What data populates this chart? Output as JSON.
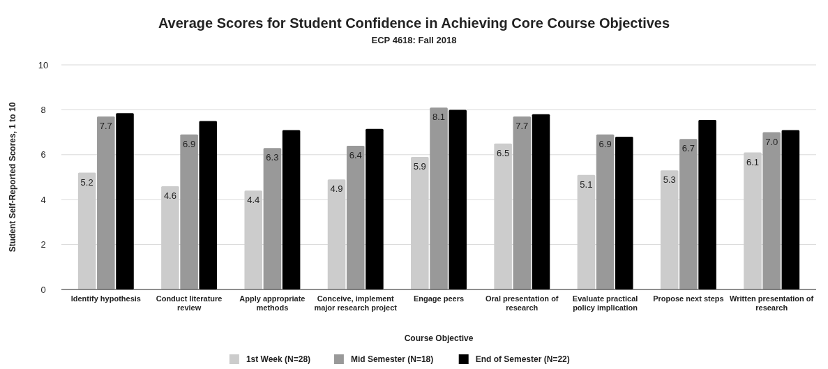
{
  "chart_data": {
    "type": "bar",
    "title": "Average Scores for Student Confidence in Achieving Core Course Objectives",
    "subtitle": "ECP 4618: Fall 2018",
    "xlabel": "Course Objective",
    "ylabel": "Student Self-Reported Scores, 1 to 10",
    "categories": [
      "Identify hypothesis",
      "Conduct literature review",
      "Apply appropriate methods",
      "Conceive, implement major research project",
      "Engage peers",
      "Oral presentation of research",
      "Evaluate practical policy implication",
      "Propose next steps",
      "Written presentation of research"
    ],
    "series": [
      {
        "name": "1st Week (N=28)",
        "color": "#cccccc",
        "values": [
          5.2,
          4.6,
          4.4,
          4.9,
          5.9,
          6.5,
          5.1,
          5.3,
          6.1
        ],
        "value_labels": [
          "5.2",
          "4.6",
          "4.4",
          "4.9",
          "5.9",
          "6.5",
          "5.1",
          "5.3",
          "6.1"
        ]
      },
      {
        "name": "Mid Semester (N=18)",
        "color": "#999999",
        "values": [
          7.7,
          6.9,
          6.3,
          6.4,
          8.1,
          7.7,
          6.9,
          6.7,
          7.0
        ],
        "value_labels": [
          "7.7",
          "6.9",
          "6.3",
          "6.4",
          "8.1",
          "7.7",
          "6.9",
          "6.7",
          "7.0"
        ]
      },
      {
        "name": "End of Semester (N=22)",
        "color": "#000000",
        "values": [
          7.85,
          7.5,
          7.1,
          7.15,
          8.0,
          7.8,
          6.8,
          7.55,
          7.1
        ]
      }
    ],
    "ylim": [
      0,
      10
    ],
    "yticks": [
      0,
      2,
      4,
      6,
      8,
      10
    ],
    "grid": "y",
    "legend": "bottom"
  }
}
